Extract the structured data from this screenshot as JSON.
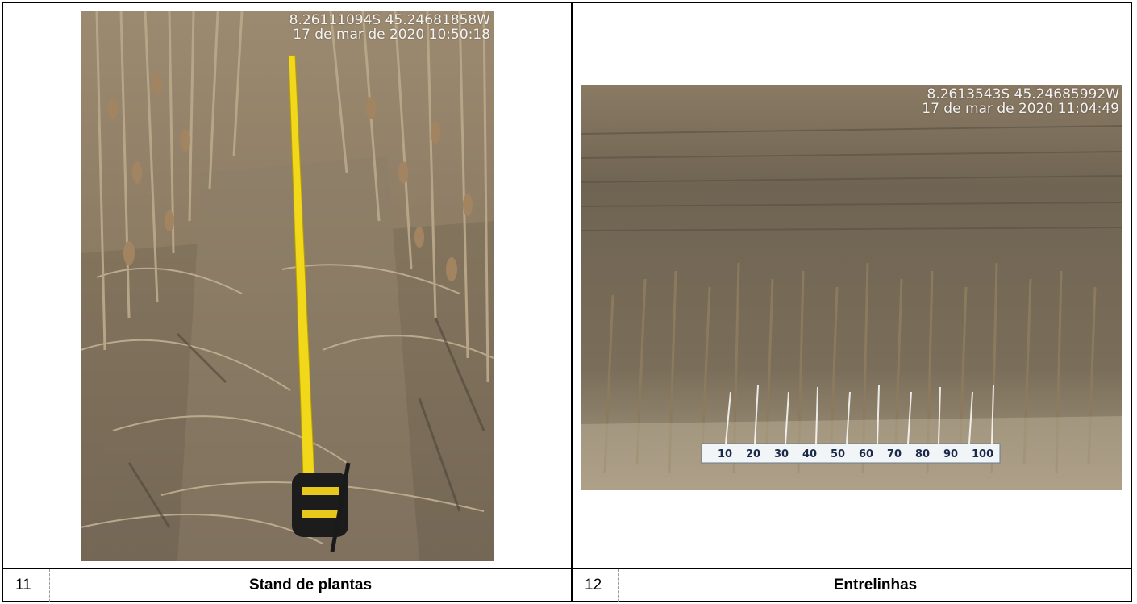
{
  "figures": [
    {
      "number": "11",
      "caption": "Stand de plantas",
      "stamp_coords": "8.26111094S 45.24681858W",
      "stamp_date": "17 de mar de 2020 10:50:18",
      "photo_icon": "tape-measure-field-photo"
    },
    {
      "number": "12",
      "caption": "Entrelinhas",
      "stamp_coords": "8.2613543S 45.24685992W",
      "stamp_date": "17 de mar de 2020 11:04:49",
      "photo_icon": "soy-field-ruler-photo",
      "ruler_marks": [
        "10",
        "20",
        "30",
        "40",
        "50",
        "60",
        "70",
        "80",
        "90",
        "100"
      ]
    }
  ],
  "colors": {
    "border": "#000000",
    "tape_yellow": "#f2d81a",
    "straw": "#a08a6c"
  }
}
